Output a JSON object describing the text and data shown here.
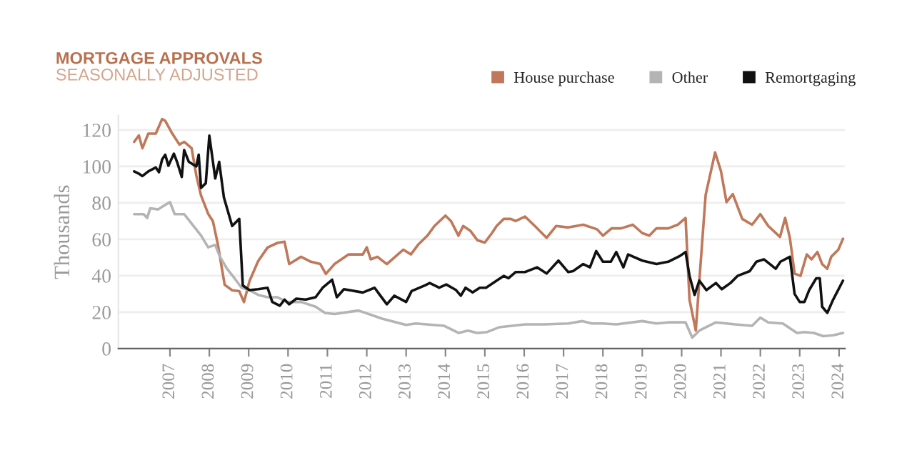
{
  "chart_data": {
    "type": "line",
    "title": "MORTGAGE APPROVALS",
    "subtitle": "SEASONALLY ADJUSTED",
    "ylabel": "Thousands",
    "xlim": [
      2005.69,
      2024.15
    ],
    "xticks": [
      2007,
      2008,
      2009,
      2010,
      2011,
      2012,
      2013,
      2014,
      2015,
      2016,
      2017,
      2018,
      2019,
      2020,
      2021,
      2022,
      2023,
      2024
    ],
    "ylim": [
      0,
      128
    ],
    "yticks": [
      0,
      20,
      40,
      60,
      80,
      100,
      120
    ],
    "grid": "y",
    "legend": "top right",
    "line_style": "solid",
    "marker": "none",
    "series": [
      {
        "name": "House purchase",
        "color": "#c0785a",
        "x": [
          2006.09,
          2006.21,
          2006.3,
          2006.45,
          2006.64,
          2006.8,
          2006.88,
          2007.06,
          2007.24,
          2007.36,
          2007.55,
          2007.67,
          2007.79,
          2007.97,
          2008.09,
          2008.21,
          2008.39,
          2008.58,
          2008.76,
          2008.88,
          2009.02,
          2009.24,
          2009.48,
          2009.73,
          2009.91,
          2010.03,
          2010.33,
          2010.58,
          2010.82,
          2010.96,
          2011.18,
          2011.54,
          2011.9,
          2012.0,
          2012.1,
          2012.27,
          2012.51,
          2012.93,
          2013.12,
          2013.3,
          2013.54,
          2013.72,
          2014.0,
          2014.14,
          2014.33,
          2014.45,
          2014.63,
          2014.81,
          2015.0,
          2015.18,
          2015.3,
          2015.48,
          2015.66,
          2015.78,
          2016.02,
          2016.27,
          2016.57,
          2016.81,
          2017.12,
          2017.5,
          2017.85,
          2018.0,
          2018.22,
          2018.46,
          2018.76,
          2019.0,
          2019.18,
          2019.36,
          2019.66,
          2019.9,
          2020.1,
          2020.2,
          2020.36,
          2020.45,
          2020.61,
          2020.85,
          2021.0,
          2021.14,
          2021.3,
          2021.54,
          2021.79,
          2022.0,
          2022.2,
          2022.5,
          2022.63,
          2022.75,
          2022.87,
          2023.02,
          2023.18,
          2023.3,
          2023.45,
          2023.57,
          2023.7,
          2023.8,
          2023.98,
          2024.1
        ],
        "values": [
          113.5,
          117,
          110,
          118,
          118,
          126,
          125,
          118,
          112,
          113.5,
          110,
          95,
          84,
          74,
          70,
          58,
          35,
          32,
          31.5,
          25.5,
          37,
          48,
          55.5,
          58,
          58.7,
          46.4,
          50.4,
          47.7,
          46.4,
          41,
          46.4,
          51.7,
          51.7,
          55.6,
          49,
          50.4,
          46.4,
          54.3,
          51.7,
          56.9,
          62,
          67.3,
          73,
          70,
          62,
          67.3,
          64.7,
          59.5,
          58.2,
          63.4,
          67.3,
          71.2,
          71.2,
          70,
          72.5,
          67.3,
          60.8,
          67.3,
          66.5,
          68,
          65.5,
          62,
          66,
          66,
          68,
          63.4,
          62,
          66,
          66,
          68,
          71.7,
          26.9,
          9.9,
          37.3,
          84.3,
          107.7,
          97.3,
          80.4,
          84.8,
          71.2,
          68,
          73.8,
          67.3,
          61.3,
          71.7,
          60.8,
          41.2,
          39.9,
          51.7,
          49,
          53,
          46.4,
          43.8,
          50.4,
          54.3,
          60.3
        ]
      },
      {
        "name": "Other",
        "color": "#b4b4b4",
        "x": [
          2006.09,
          2006.33,
          2006.42,
          2006.5,
          2006.7,
          2006.85,
          2007.0,
          2007.12,
          2007.36,
          2007.55,
          2007.79,
          2007.97,
          2008.15,
          2008.27,
          2008.45,
          2008.64,
          2008.82,
          2009.02,
          2009.24,
          2009.48,
          2009.73,
          2009.97,
          2010.33,
          2010.7,
          2010.94,
          2011.18,
          2011.79,
          2012.39,
          2013.0,
          2013.24,
          2013.97,
          2014.33,
          2014.57,
          2014.81,
          2015.06,
          2015.36,
          2016.02,
          2016.51,
          2017.12,
          2017.48,
          2017.72,
          2018.0,
          2018.34,
          2019.0,
          2019.36,
          2019.66,
          2020.1,
          2020.27,
          2020.45,
          2020.87,
          2021.36,
          2021.79,
          2022.0,
          2022.2,
          2022.57,
          2022.93,
          2023.12,
          2023.36,
          2023.6,
          2023.85,
          2024.1
        ],
        "values": [
          73.8,
          73.8,
          71.7,
          77,
          76.4,
          78.5,
          80.4,
          73.8,
          73.8,
          68.6,
          62.1,
          55.6,
          56.9,
          50.4,
          43.8,
          38.6,
          33.4,
          32.1,
          29.5,
          28.2,
          28.2,
          25.6,
          25.6,
          23,
          19.6,
          19,
          20.9,
          16.4,
          13,
          13.8,
          12.5,
          8.6,
          9.9,
          8.6,
          9.1,
          11.7,
          13.3,
          13.3,
          13.8,
          15.1,
          13.8,
          13.8,
          13.3,
          15.1,
          13.8,
          14.4,
          14.4,
          6,
          9.9,
          14.4,
          13.3,
          12.5,
          17,
          14.4,
          13.8,
          8.6,
          9.1,
          8.6,
          6.8,
          7.3,
          8.6
        ]
      },
      {
        "name": "Remortgaging",
        "color": "#111111",
        "x": [
          2006.09,
          2006.21,
          2006.3,
          2006.45,
          2006.64,
          2006.72,
          2006.8,
          2006.88,
          2006.96,
          2007.1,
          2007.18,
          2007.3,
          2007.36,
          2007.48,
          2007.67,
          2007.73,
          2007.79,
          2007.91,
          2008.0,
          2008.15,
          2008.25,
          2008.37,
          2008.58,
          2008.76,
          2008.85,
          2009.02,
          2009.24,
          2009.48,
          2009.6,
          2009.79,
          2009.91,
          2010.03,
          2010.21,
          2010.45,
          2010.7,
          2010.88,
          2011.12,
          2011.24,
          2011.42,
          2011.9,
          2012.2,
          2012.33,
          2012.51,
          2012.7,
          2013.0,
          2013.14,
          2013.48,
          2013.6,
          2013.84,
          2014.02,
          2014.27,
          2014.39,
          2014.51,
          2014.69,
          2014.87,
          2015.03,
          2015.3,
          2015.48,
          2015.6,
          2015.78,
          2016.02,
          2016.33,
          2016.57,
          2016.87,
          2017.12,
          2017.24,
          2017.5,
          2017.67,
          2017.83,
          2018.0,
          2018.2,
          2018.34,
          2018.52,
          2018.64,
          2019.0,
          2019.36,
          2019.66,
          2019.96,
          2020.1,
          2020.2,
          2020.33,
          2020.45,
          2020.63,
          2020.87,
          2021.02,
          2021.24,
          2021.42,
          2021.73,
          2021.9,
          2022.09,
          2022.39,
          2022.51,
          2022.75,
          2022.87,
          2023.0,
          2023.12,
          2023.24,
          2023.42,
          2023.51,
          2023.57,
          2023.7,
          2023.85,
          2024.1
        ],
        "values": [
          97.3,
          96,
          94.7,
          97.3,
          99.4,
          96.8,
          103.8,
          106.4,
          100.4,
          107,
          102.5,
          94.2,
          109,
          102.5,
          100,
          106.4,
          88.2,
          90.8,
          116.9,
          93.4,
          102.5,
          83,
          67.3,
          71.2,
          34.7,
          32.1,
          32.6,
          33.4,
          25.6,
          23.5,
          26.9,
          24.3,
          27.4,
          26.9,
          28.2,
          33.4,
          37.8,
          28.2,
          32.6,
          30.8,
          33.4,
          29.5,
          24.3,
          29,
          25.6,
          31.6,
          34.7,
          36,
          33.4,
          35.2,
          32.1,
          29,
          33.4,
          30.8,
          33.4,
          33.4,
          37.3,
          39.9,
          38.6,
          42,
          42,
          44.6,
          41.2,
          48.3,
          42,
          42.5,
          46.4,
          44.6,
          53.5,
          47.7,
          47.7,
          53,
          44.6,
          51.7,
          48.3,
          46.4,
          47.7,
          50.9,
          53,
          39.9,
          29.5,
          37.3,
          32.1,
          36,
          32.6,
          36,
          39.9,
          42.5,
          47.7,
          49,
          43.8,
          47.7,
          50.4,
          30,
          25.6,
          25.6,
          32.1,
          38.6,
          38.6,
          23,
          19.6,
          26.9,
          37.3
        ]
      }
    ]
  }
}
